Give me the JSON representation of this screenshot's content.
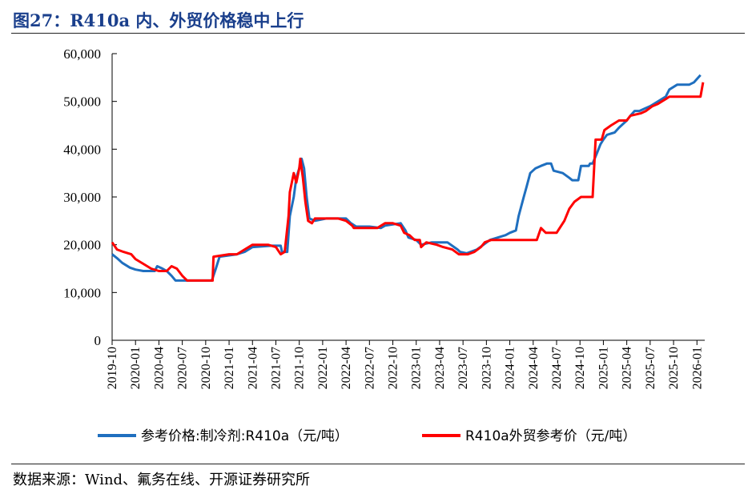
{
  "header": {
    "title": "图27：R410a 内、外贸价格稳中上行"
  },
  "footer": {
    "source": "数据来源：Wind、氟务在线、开源证券研究所"
  },
  "colors": {
    "blue": "#1f6fbf",
    "red": "#ff0000"
  },
  "chart_data": {
    "type": "line",
    "title": "",
    "xlabel": "",
    "ylabel": "",
    "ylim": [
      0,
      60000
    ],
    "yticks": [
      0,
      10000,
      20000,
      30000,
      40000,
      50000,
      60000
    ],
    "ytick_labels": [
      "0",
      "10,000",
      "20,000",
      "30,000",
      "40,000",
      "50,000",
      "60,000"
    ],
    "xlim": [
      "2019-10",
      "2026-02"
    ],
    "xtick_labels": [
      "2019-10",
      "2020-01",
      "2020-04",
      "2020-07",
      "2020-10",
      "2021-01",
      "2021-04",
      "2021-07",
      "2021-10",
      "2022-01",
      "2022-04",
      "2022-07",
      "2022-10",
      "2023-01",
      "2023-04",
      "2023-07",
      "2023-10",
      "2024-01",
      "2024-04",
      "2024-07",
      "2024-10",
      "2025-01",
      "2025-04",
      "2025-07",
      "2025-10",
      "2026-01"
    ],
    "grid": false,
    "legend_position": "bottom",
    "series": [
      {
        "name": "参考价格:制冷剂:R410a（元/吨）",
        "color": "#1f6fbf",
        "points": [
          [
            "2019-10-01",
            18000
          ],
          [
            "2019-10-20",
            17200
          ],
          [
            "2019-11-10",
            16200
          ],
          [
            "2019-12-10",
            15200
          ],
          [
            "2020-01-01",
            14800
          ],
          [
            "2020-02-01",
            14500
          ],
          [
            "2020-03-15",
            14500
          ],
          [
            "2020-03-25",
            15500
          ],
          [
            "2020-04-15",
            15000
          ],
          [
            "2020-05-01",
            14500
          ],
          [
            "2020-05-20",
            13500
          ],
          [
            "2020-06-05",
            12500
          ],
          [
            "2020-07-01",
            12500
          ],
          [
            "2020-10-01",
            12500
          ],
          [
            "2020-10-25",
            12500
          ],
          [
            "2020-11-10",
            15000
          ],
          [
            "2020-11-25",
            17500
          ],
          [
            "2021-02-01",
            18000
          ],
          [
            "2021-03-01",
            18500
          ],
          [
            "2021-04-01",
            19500
          ],
          [
            "2021-06-15",
            19800
          ],
          [
            "2021-07-20",
            19800
          ],
          [
            "2021-07-25",
            18500
          ],
          [
            "2021-08-15",
            18500
          ],
          [
            "2021-08-25",
            26000
          ],
          [
            "2021-09-10",
            30000
          ],
          [
            "2021-09-20",
            34000
          ],
          [
            "2021-10-01",
            36000
          ],
          [
            "2021-10-10",
            38000
          ],
          [
            "2021-10-20",
            36000
          ],
          [
            "2021-10-30",
            30000
          ],
          [
            "2021-11-10",
            25500
          ],
          [
            "2021-12-01",
            25000
          ],
          [
            "2022-01-15",
            25500
          ],
          [
            "2022-04-01",
            25500
          ],
          [
            "2022-04-20",
            24500
          ],
          [
            "2022-05-10",
            23800
          ],
          [
            "2022-07-01",
            23800
          ],
          [
            "2022-08-15",
            23500
          ],
          [
            "2022-09-01",
            24000
          ],
          [
            "2022-11-01",
            24500
          ],
          [
            "2022-11-20",
            23000
          ],
          [
            "2022-12-01",
            21500
          ],
          [
            "2023-01-01",
            21000
          ],
          [
            "2023-01-20",
            20000
          ],
          [
            "2023-03-01",
            20500
          ],
          [
            "2023-05-01",
            20500
          ],
          [
            "2023-06-10",
            19000
          ],
          [
            "2023-06-20",
            18500
          ],
          [
            "2023-07-15",
            18200
          ],
          [
            "2023-08-25",
            19000
          ],
          [
            "2023-09-20",
            20000
          ],
          [
            "2023-10-15",
            21000
          ],
          [
            "2023-12-15",
            22000
          ],
          [
            "2024-01-01",
            22500
          ],
          [
            "2024-01-25",
            23000
          ],
          [
            "2024-02-05",
            26000
          ],
          [
            "2024-02-25",
            30000
          ],
          [
            "2024-03-05",
            32000
          ],
          [
            "2024-03-20",
            35000
          ],
          [
            "2024-04-10",
            36000
          ],
          [
            "2024-05-01",
            36500
          ],
          [
            "2024-05-25",
            37000
          ],
          [
            "2024-06-10",
            37000
          ],
          [
            "2024-06-20",
            35500
          ],
          [
            "2024-07-25",
            35000
          ],
          [
            "2024-08-20",
            34000
          ],
          [
            "2024-09-01",
            33500
          ],
          [
            "2024-09-25",
            33500
          ],
          [
            "2024-10-05",
            36500
          ],
          [
            "2024-11-05",
            36500
          ],
          [
            "2024-11-10",
            37000
          ],
          [
            "2024-11-20",
            37000
          ],
          [
            "2024-12-05",
            39000
          ],
          [
            "2024-12-20",
            41000
          ],
          [
            "2025-01-01",
            42000
          ],
          [
            "2025-01-15",
            43000
          ],
          [
            "2025-02-15",
            43500
          ],
          [
            "2025-03-01",
            44500
          ],
          [
            "2025-04-01",
            46000
          ],
          [
            "2025-04-15",
            47000
          ],
          [
            "2025-05-01",
            48000
          ],
          [
            "2025-05-20",
            48000
          ],
          [
            "2025-06-10",
            48500
          ],
          [
            "2025-07-01",
            49000
          ],
          [
            "2025-08-01",
            50000
          ],
          [
            "2025-09-01",
            51000
          ],
          [
            "2025-09-15",
            52500
          ],
          [
            "2025-10-15",
            53500
          ],
          [
            "2025-12-01",
            53500
          ],
          [
            "2025-12-20",
            54000
          ],
          [
            "2026-01-15",
            55500
          ]
        ]
      },
      {
        "name": "R410a外贸参考价（元/吨）",
        "color": "#ff0000",
        "points": [
          [
            "2019-10-01",
            20500
          ],
          [
            "2019-10-20",
            19000
          ],
          [
            "2019-11-15",
            18500
          ],
          [
            "2019-12-15",
            18000
          ],
          [
            "2020-01-01",
            17000
          ],
          [
            "2020-02-01",
            16000
          ],
          [
            "2020-03-01",
            15000
          ],
          [
            "2020-04-01",
            14500
          ],
          [
            "2020-05-01",
            14500
          ],
          [
            "2020-05-20",
            15500
          ],
          [
            "2020-06-10",
            15000
          ],
          [
            "2020-07-01",
            13500
          ],
          [
            "2020-07-20",
            12500
          ],
          [
            "2020-10-01",
            12500
          ],
          [
            "2020-10-28",
            12500
          ],
          [
            "2020-11-01",
            17500
          ],
          [
            "2021-01-01",
            18000
          ],
          [
            "2021-02-01",
            18000
          ],
          [
            "2021-03-01",
            19000
          ],
          [
            "2021-04-01",
            20000
          ],
          [
            "2021-06-01",
            20000
          ],
          [
            "2021-07-01",
            19500
          ],
          [
            "2021-07-20",
            18000
          ],
          [
            "2021-08-05",
            18500
          ],
          [
            "2021-08-20",
            26000
          ],
          [
            "2021-08-25",
            31000
          ],
          [
            "2021-09-10",
            35000
          ],
          [
            "2021-09-20",
            33000
          ],
          [
            "2021-10-01",
            36000
          ],
          [
            "2021-10-05",
            38000
          ],
          [
            "2021-10-15",
            34000
          ],
          [
            "2021-10-25",
            29000
          ],
          [
            "2021-11-05",
            25000
          ],
          [
            "2021-11-20",
            24500
          ],
          [
            "2021-12-01",
            25500
          ],
          [
            "2022-03-01",
            25500
          ],
          [
            "2022-04-01",
            25000
          ],
          [
            "2022-04-25",
            24000
          ],
          [
            "2022-05-01",
            23500
          ],
          [
            "2022-07-01",
            23500
          ],
          [
            "2022-08-01",
            23500
          ],
          [
            "2022-09-01",
            24500
          ],
          [
            "2022-10-01",
            24500
          ],
          [
            "2022-11-01",
            24000
          ],
          [
            "2022-11-15",
            22500
          ],
          [
            "2022-12-05",
            22000
          ],
          [
            "2022-12-25",
            21000
          ],
          [
            "2023-01-15",
            21000
          ],
          [
            "2023-01-20",
            19500
          ],
          [
            "2023-02-10",
            20500
          ],
          [
            "2023-03-20",
            20000
          ],
          [
            "2023-04-15",
            19500
          ],
          [
            "2023-05-20",
            19000
          ],
          [
            "2023-06-15",
            18000
          ],
          [
            "2023-07-20",
            18000
          ],
          [
            "2023-08-15",
            18500
          ],
          [
            "2023-09-10",
            19500
          ],
          [
            "2023-09-25",
            20500
          ],
          [
            "2023-10-20",
            21000
          ],
          [
            "2023-12-01",
            21000
          ],
          [
            "2024-03-01",
            21000
          ],
          [
            "2024-04-15",
            21000
          ],
          [
            "2024-05-01",
            23500
          ],
          [
            "2024-05-20",
            22500
          ],
          [
            "2024-07-01",
            22500
          ],
          [
            "2024-08-01",
            25000
          ],
          [
            "2024-08-20",
            27500
          ],
          [
            "2024-09-10",
            29000
          ],
          [
            "2024-10-05",
            30000
          ],
          [
            "2024-11-20",
            30000
          ],
          [
            "2024-12-01",
            42000
          ],
          [
            "2024-12-25",
            42000
          ],
          [
            "2025-01-05",
            44000
          ],
          [
            "2025-02-01",
            45000
          ],
          [
            "2025-03-01",
            46000
          ],
          [
            "2025-04-01",
            46000
          ],
          [
            "2025-04-15",
            47000
          ],
          [
            "2025-05-25",
            47500
          ],
          [
            "2025-06-15",
            48000
          ],
          [
            "2025-07-10",
            49000
          ],
          [
            "2025-08-01",
            49500
          ],
          [
            "2025-09-01",
            50500
          ],
          [
            "2025-09-15",
            51000
          ],
          [
            "2025-12-01",
            51000
          ],
          [
            "2026-01-15",
            51000
          ],
          [
            "2026-01-25",
            54000
          ]
        ]
      }
    ]
  }
}
